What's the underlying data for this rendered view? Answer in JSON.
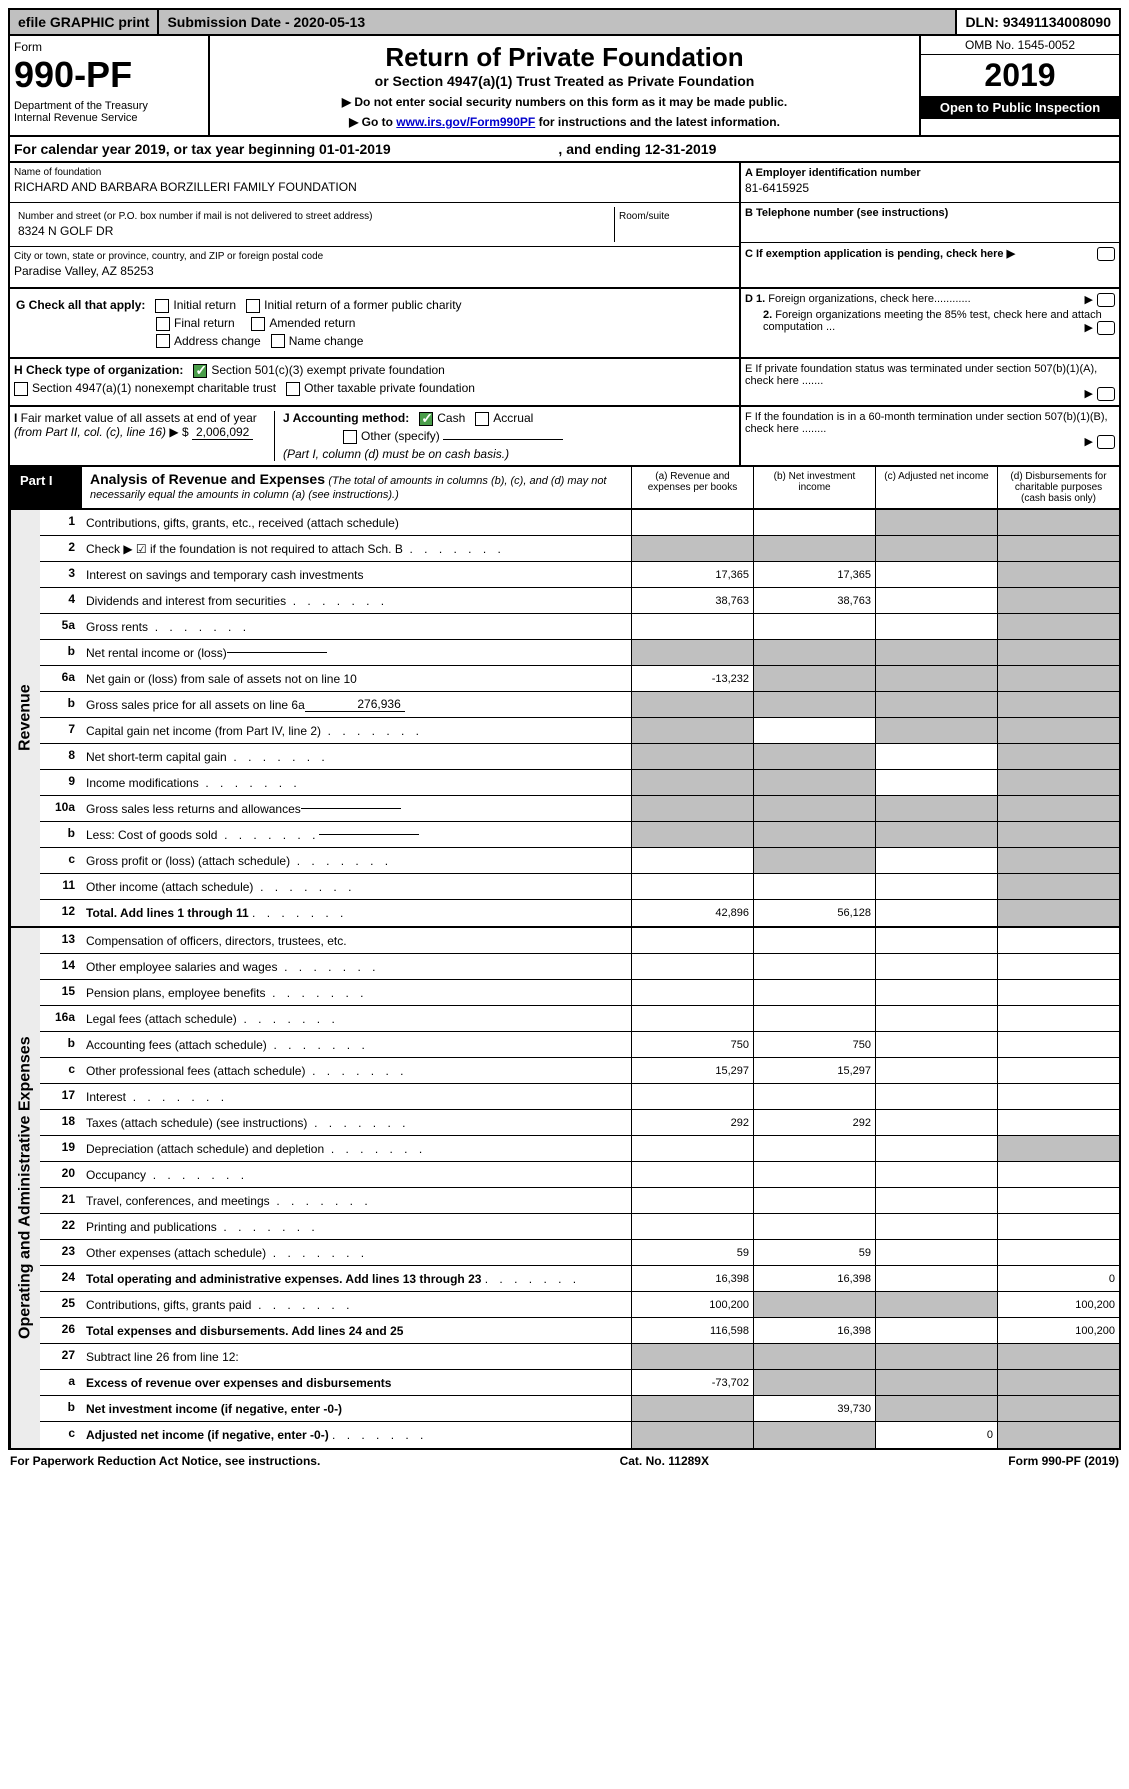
{
  "topbar": {
    "efile": "efile GRAPHIC print",
    "submission": "Submission Date - 2020-05-13",
    "dln": "DLN: 93491134008090"
  },
  "header": {
    "form_word": "Form",
    "form_num": "990-PF",
    "dept": "Department of the Treasury",
    "irs": "Internal Revenue Service",
    "title": "Return of Private Foundation",
    "subtitle": "or Section 4947(a)(1) Trust Treated as Private Foundation",
    "instr1": "▶ Do not enter social security numbers on this form as it may be made public.",
    "instr2_pre": "▶ Go to ",
    "instr2_link": "www.irs.gov/Form990PF",
    "instr2_post": " for instructions and the latest information.",
    "omb": "OMB No. 1545-0052",
    "year": "2019",
    "open": "Open to Public Inspection"
  },
  "calyear": {
    "pre": "For calendar year 2019, or tax year beginning ",
    "begin": "01-01-2019",
    "mid": " , and ending ",
    "end": "12-31-2019"
  },
  "id": {
    "name_label": "Name of foundation",
    "name": "RICHARD AND BARBARA BORZILLERI FAMILY FOUNDATION",
    "addr_label": "Number and street (or P.O. box number if mail is not delivered to street address)",
    "addr": "8324 N GOLF DR",
    "room_label": "Room/suite",
    "city_label": "City or town, state or province, country, and ZIP or foreign postal code",
    "city": "Paradise Valley, AZ  85253",
    "ein_label": "A Employer identification number",
    "ein": "81-6415925",
    "tel_label": "B Telephone number (see instructions)",
    "c_label": "C If exemption application is pending, check here ▶"
  },
  "g": {
    "label": "G Check all that apply:",
    "initial": "Initial return",
    "initial_former": "Initial return of a former public charity",
    "final": "Final return",
    "amended": "Amended return",
    "addr_change": "Address change",
    "name_change": "Name change"
  },
  "h": {
    "label": "H Check type of organization:",
    "501c3": "Section 501(c)(3) exempt private foundation",
    "4947": "Section 4947(a)(1) nonexempt charitable trust",
    "other_tax": "Other taxable private foundation"
  },
  "i": {
    "label": "I Fair market value of all assets at end of year (from Part II, col. (c), line 16) ▶ $",
    "value": "2,006,092"
  },
  "j": {
    "label": "J Accounting method:",
    "cash": "Cash",
    "accrual": "Accrual",
    "other": "Other (specify)",
    "note": "(Part I, column (d) must be on cash basis.)"
  },
  "right_notes": {
    "d1": "D 1. Foreign organizations, check here............",
    "d2": "2. Foreign organizations meeting the 85% test, check here and attach computation ...",
    "e": "E  If private foundation status was terminated under section 507(b)(1)(A), check here .......",
    "f": "F  If the foundation is in a 60-month termination under section 507(b)(1)(B), check here ........"
  },
  "part1": {
    "label": "Part I",
    "title": "Analysis of Revenue and Expenses",
    "note": "(The total of amounts in columns (b), (c), and (d) may not necessarily equal the amounts in column (a) (see instructions).)",
    "col_a": "(a)   Revenue and expenses per books",
    "col_b": "(b)  Net investment income",
    "col_c": "(c)  Adjusted net income",
    "col_d": "(d)  Disbursements for charitable purposes (cash basis only)"
  },
  "side": {
    "revenue": "Revenue",
    "expenses": "Operating and Administrative Expenses"
  },
  "rows": [
    {
      "n": "1",
      "d": "Contributions, gifts, grants, etc., received (attach schedule)",
      "a": "",
      "b": "",
      "c": "gray",
      "dd": "gray"
    },
    {
      "n": "2",
      "d": "Check ▶ ☑ if the foundation is not required to attach Sch. B",
      "dots": true,
      "a": "gray",
      "b": "gray",
      "c": "gray",
      "dd": "gray"
    },
    {
      "n": "3",
      "d": "Interest on savings and temporary cash investments",
      "a": "17,365",
      "b": "17,365",
      "c": "",
      "dd": "gray"
    },
    {
      "n": "4",
      "d": "Dividends and interest from securities",
      "dots": true,
      "a": "38,763",
      "b": "38,763",
      "c": "",
      "dd": "gray"
    },
    {
      "n": "5a",
      "d": "Gross rents",
      "dots": true,
      "a": "",
      "b": "",
      "c": "",
      "dd": "gray"
    },
    {
      "n": "b",
      "d": "Net rental income or (loss)",
      "inline": true,
      "a": "gray",
      "b": "gray",
      "c": "gray",
      "dd": "gray"
    },
    {
      "n": "6a",
      "d": "Net gain or (loss) from sale of assets not on line 10",
      "a": "-13,232",
      "b": "gray",
      "c": "gray",
      "dd": "gray"
    },
    {
      "n": "b",
      "d": "Gross sales price for all assets on line 6a",
      "inline": true,
      "iv": "276,936",
      "a": "gray",
      "b": "gray",
      "c": "gray",
      "dd": "gray"
    },
    {
      "n": "7",
      "d": "Capital gain net income (from Part IV, line 2)",
      "dots": true,
      "a": "gray",
      "b": "",
      "c": "gray",
      "dd": "gray"
    },
    {
      "n": "8",
      "d": "Net short-term capital gain",
      "dots": true,
      "a": "gray",
      "b": "gray",
      "c": "",
      "dd": "gray"
    },
    {
      "n": "9",
      "d": "Income modifications",
      "dots": true,
      "a": "gray",
      "b": "gray",
      "c": "",
      "dd": "gray"
    },
    {
      "n": "10a",
      "d": "Gross sales less returns and allowances",
      "inline": true,
      "a": "gray",
      "b": "gray",
      "c": "gray",
      "dd": "gray"
    },
    {
      "n": "b",
      "d": "Less: Cost of goods sold",
      "dots": true,
      "inline": true,
      "a": "gray",
      "b": "gray",
      "c": "gray",
      "dd": "gray"
    },
    {
      "n": "c",
      "d": "Gross profit or (loss) (attach schedule)",
      "dots": true,
      "a": "",
      "b": "gray",
      "c": "",
      "dd": "gray"
    },
    {
      "n": "11",
      "d": "Other income (attach schedule)",
      "dots": true,
      "a": "",
      "b": "",
      "c": "",
      "dd": "gray"
    },
    {
      "n": "12",
      "d": "Total. Add lines 1 through 11",
      "bold": true,
      "dots": true,
      "a": "42,896",
      "b": "56,128",
      "c": "",
      "dd": "gray"
    }
  ],
  "exp_rows": [
    {
      "n": "13",
      "d": "Compensation of officers, directors, trustees, etc.",
      "a": "",
      "b": "",
      "c": "",
      "dd": ""
    },
    {
      "n": "14",
      "d": "Other employee salaries and wages",
      "dots": true,
      "a": "",
      "b": "",
      "c": "",
      "dd": ""
    },
    {
      "n": "15",
      "d": "Pension plans, employee benefits",
      "dots": true,
      "a": "",
      "b": "",
      "c": "",
      "dd": ""
    },
    {
      "n": "16a",
      "d": "Legal fees (attach schedule)",
      "dots": true,
      "a": "",
      "b": "",
      "c": "",
      "dd": ""
    },
    {
      "n": "b",
      "d": "Accounting fees (attach schedule)",
      "dots": true,
      "a": "750",
      "b": "750",
      "c": "",
      "dd": ""
    },
    {
      "n": "c",
      "d": "Other professional fees (attach schedule)",
      "dots": true,
      "a": "15,297",
      "b": "15,297",
      "c": "",
      "dd": ""
    },
    {
      "n": "17",
      "d": "Interest",
      "dots": true,
      "a": "",
      "b": "",
      "c": "",
      "dd": ""
    },
    {
      "n": "18",
      "d": "Taxes (attach schedule) (see instructions)",
      "dots": true,
      "a": "292",
      "b": "292",
      "c": "",
      "dd": ""
    },
    {
      "n": "19",
      "d": "Depreciation (attach schedule) and depletion",
      "dots": true,
      "a": "",
      "b": "",
      "c": "",
      "dd": "gray"
    },
    {
      "n": "20",
      "d": "Occupancy",
      "dots": true,
      "a": "",
      "b": "",
      "c": "",
      "dd": ""
    },
    {
      "n": "21",
      "d": "Travel, conferences, and meetings",
      "dots": true,
      "a": "",
      "b": "",
      "c": "",
      "dd": ""
    },
    {
      "n": "22",
      "d": "Printing and publications",
      "dots": true,
      "a": "",
      "b": "",
      "c": "",
      "dd": ""
    },
    {
      "n": "23",
      "d": "Other expenses (attach schedule)",
      "dots": true,
      "a": "59",
      "b": "59",
      "c": "",
      "dd": ""
    },
    {
      "n": "24",
      "d": "Total operating and administrative expenses. Add lines 13 through 23",
      "bold": true,
      "dots": true,
      "a": "16,398",
      "b": "16,398",
      "c": "",
      "dd": "0"
    },
    {
      "n": "25",
      "d": "Contributions, gifts, grants paid",
      "dots": true,
      "a": "100,200",
      "b": "gray",
      "c": "gray",
      "dd": "100,200"
    },
    {
      "n": "26",
      "d": "Total expenses and disbursements. Add lines 24 and 25",
      "bold": true,
      "a": "116,598",
      "b": "16,398",
      "c": "",
      "dd": "100,200"
    },
    {
      "n": "27",
      "d": "Subtract line 26 from line 12:",
      "a": "gray",
      "b": "gray",
      "c": "gray",
      "dd": "gray"
    },
    {
      "n": "a",
      "d": "Excess of revenue over expenses and disbursements",
      "bold": true,
      "a": "-73,702",
      "b": "gray",
      "c": "gray",
      "dd": "gray"
    },
    {
      "n": "b",
      "d": "Net investment income (if negative, enter -0-)",
      "bold": true,
      "a": "gray",
      "b": "39,730",
      "c": "gray",
      "dd": "gray"
    },
    {
      "n": "c",
      "d": "Adjusted net income (if negative, enter -0-)",
      "bold": true,
      "dots": true,
      "a": "gray",
      "b": "gray",
      "c": "0",
      "dd": "gray"
    }
  ],
  "footer": {
    "left": "For Paperwork Reduction Act Notice, see instructions.",
    "mid": "Cat. No. 11289X",
    "right": "Form 990-PF (2019)"
  }
}
